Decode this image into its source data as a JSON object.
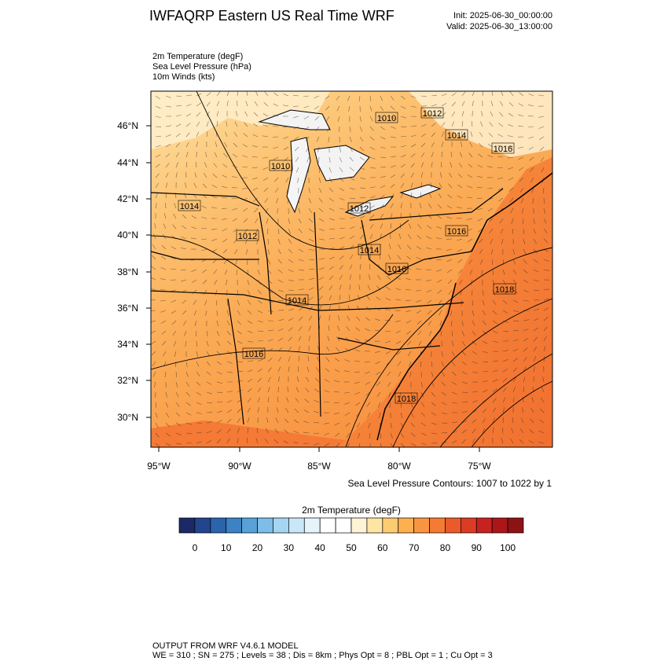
{
  "header": {
    "title": "IWFAQRP Eastern US Real Time WRF",
    "init": "Init: 2025-06-30_00:00:00",
    "valid": "Valid: 2025-06-30_13:00:00"
  },
  "fields": [
    "2m Temperature   (degF)",
    "Sea Level Pressure   (hPa)",
    "10m Winds   (kts)"
  ],
  "map": {
    "lat_labels": [
      "46°N",
      "44°N",
      "42°N",
      "40°N",
      "38°N",
      "36°N",
      "34°N",
      "32°N",
      "30°N"
    ],
    "lon_labels": [
      "95°W",
      "90°W",
      "85°W",
      "80°W",
      "75°W"
    ],
    "contour_labels": [
      "1010",
      "1012",
      "1014",
      "1016",
      "1010",
      "1014",
      "1012",
      "1012",
      "1016",
      "1014",
      "1016",
      "1018",
      "1014",
      "1016",
      "1018"
    ],
    "contour_note": "Sea Level Pressure Contours: 1007 to 1022 by 1"
  },
  "colorbar": {
    "title": "2m Temperature  (degF)",
    "colors": [
      "#1b2a66",
      "#23458e",
      "#2b63ad",
      "#3c82c4",
      "#58a1d7",
      "#7dbde7",
      "#a6d5f1",
      "#c9e7f7",
      "#e5f4fb",
      "#ffffff",
      "#ffffff",
      "#fff3d6",
      "#fee5a3",
      "#fdcb72",
      "#fdb04f",
      "#f99541",
      "#f57b34",
      "#ec5a2b",
      "#dc3b25",
      "#c6221f",
      "#ac1619",
      "#8d1214"
    ],
    "labels": [
      "0",
      "10",
      "20",
      "30",
      "40",
      "50",
      "60",
      "70",
      "80",
      "90",
      "100"
    ]
  },
  "footer": [
    "OUTPUT FROM WRF V4.6.1 MODEL",
    "WE = 310 ; SN = 275 ; Levels = 38 ; Dis = 8km ; Phys Opt = 8 ; PBL Opt = 1 ; Cu Opt = 3"
  ]
}
